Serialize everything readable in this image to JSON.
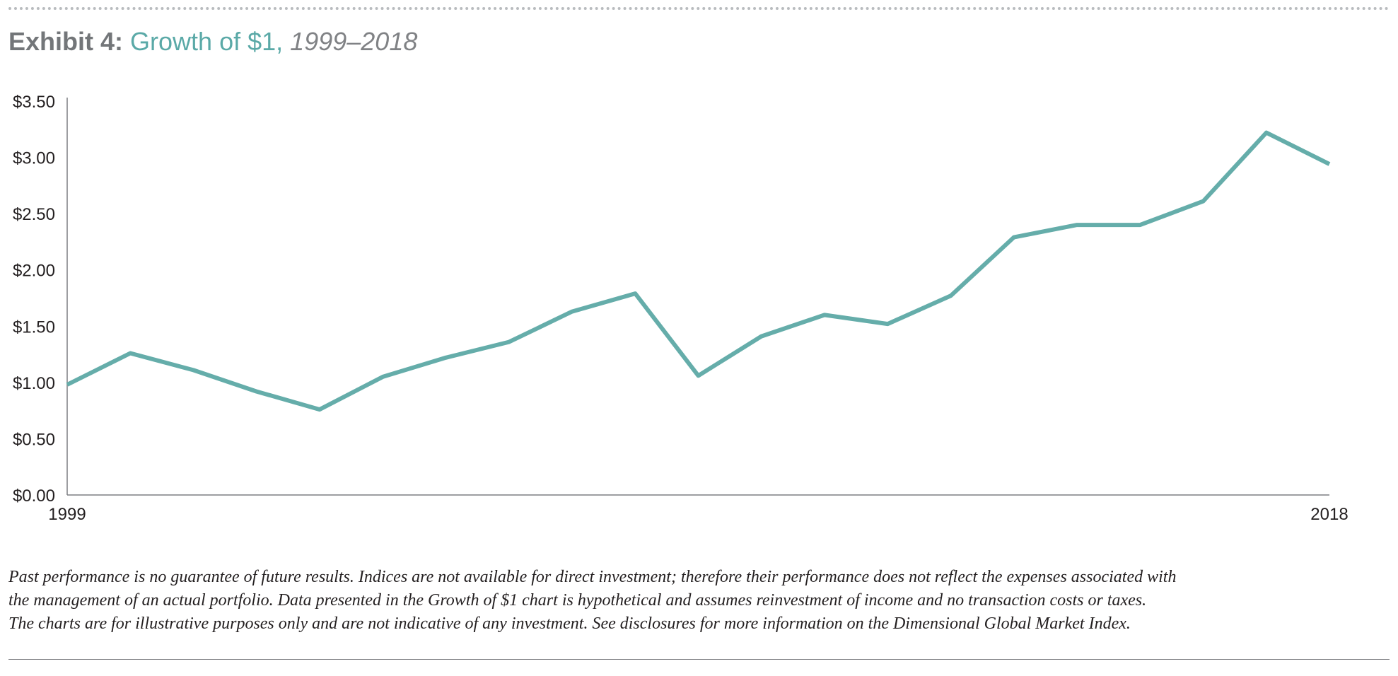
{
  "title": {
    "prefix": "Exhibit 4:",
    "main": "Growth of $1,",
    "years": "1999–2018"
  },
  "colors": {
    "line": "#65adaa",
    "title_accent": "#5aa9a7",
    "title_gray": "#737679",
    "axis": "#7d7f82",
    "text": "#231f20"
  },
  "chart_data": {
    "type": "line",
    "title": "Growth of $1, 1999–2018",
    "xlabel": "",
    "ylabel": "",
    "x": [
      1999,
      2000,
      2001,
      2002,
      2003,
      2004,
      2005,
      2006,
      2007,
      2008,
      2009,
      2010,
      2011,
      2012,
      2013,
      2014,
      2015,
      2016,
      2017,
      2018,
      2019
    ],
    "x_tick_labels": [
      "1999",
      "2018"
    ],
    "x_tick_values": [
      1999,
      2019
    ],
    "series": [
      {
        "values": [
          0.98,
          1.26,
          1.11,
          0.92,
          0.76,
          1.05,
          1.22,
          1.36,
          1.63,
          1.79,
          1.06,
          1.41,
          1.6,
          1.52,
          1.77,
          2.29,
          2.4,
          2.4,
          2.61,
          3.22,
          2.94
        ]
      }
    ],
    "ylim": [
      0,
      3.5
    ],
    "y_ticks": [
      0,
      0.5,
      1.0,
      1.5,
      2.0,
      2.5,
      3.0,
      3.5
    ],
    "y_tick_labels": [
      "$0.00",
      "$0.50",
      "$1.00",
      "$1.50",
      "$2.00",
      "$2.50",
      "$3.00",
      "$3.50"
    ],
    "grid": false,
    "legend": "none"
  },
  "footnote": {
    "line1": "Past performance is no guarantee of future results. Indices are not available for direct investment; therefore their performance does not reflect the expenses associated with",
    "line2": "the management of an actual portfolio. Data presented in the Growth of $1 chart is hypothetical and assumes reinvestment of income and no transaction costs or taxes.",
    "line3": "The charts are for illustrative purposes only and are not indicative of any investment. See disclosures for more information on the Dimensional Global Market Index."
  }
}
